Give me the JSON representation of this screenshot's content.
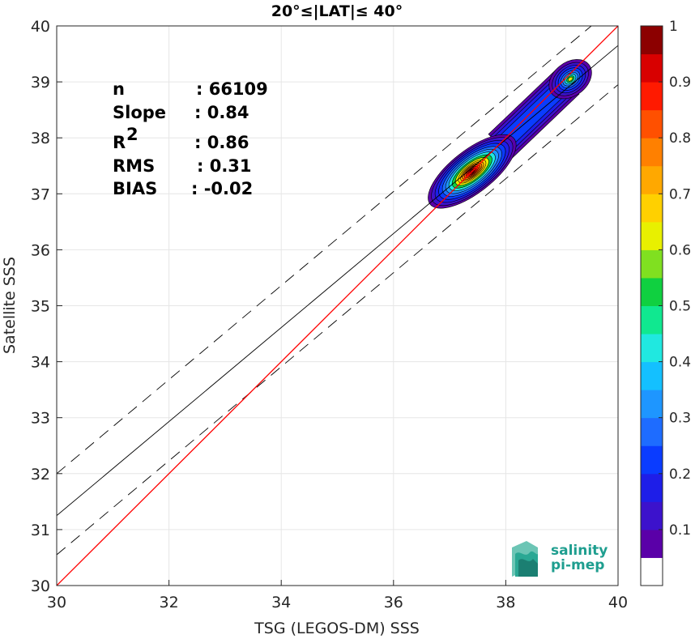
{
  "chart_data": {
    "type": "heatmap",
    "title": "20°≤|LAT|≤ 40°",
    "xlabel": "TSG (LEGOS-DM) SSS",
    "ylabel": "Satellite SSS",
    "xlim": [
      30,
      40
    ],
    "ylim": [
      30,
      40
    ],
    "x_ticks": [
      "30",
      "32",
      "34",
      "36",
      "38",
      "40"
    ],
    "y_ticks": [
      "30",
      "31",
      "32",
      "33",
      "34",
      "35",
      "36",
      "37",
      "38",
      "39",
      "40"
    ],
    "grid": true,
    "stats": [
      {
        "label": "n",
        "value": ": 66109"
      },
      {
        "label": "Slope",
        "value": ": 0.84"
      },
      {
        "label": "R",
        "value": ": 0.86",
        "superscript": "2"
      },
      {
        "label": "RMS",
        "value": ": 0.31"
      },
      {
        "label": "BIAS",
        "value": ": -0.02"
      }
    ],
    "lines": {
      "identity": {
        "x": [
          30,
          40
        ],
        "y": [
          30,
          40
        ],
        "color": "#ff0000"
      },
      "regression": {
        "x": [
          30,
          40
        ],
        "y": [
          31.25,
          39.65
        ],
        "color": "#000000"
      },
      "regression_upper": {
        "x": [
          30,
          40
        ],
        "y": [
          32.0,
          40.4
        ],
        "style": "dashed"
      },
      "regression_lower": {
        "x": [
          30,
          40
        ],
        "y": [
          30.55,
          38.95
        ],
        "style": "dashed"
      }
    },
    "density_peaks": [
      {
        "x": 37.4,
        "y": 37.4,
        "value": 1.0
      },
      {
        "x": 39.15,
        "y": 39.05,
        "value": 0.6
      }
    ],
    "colorbar": {
      "ticks": [
        "0.1",
        "0.2",
        "0.3",
        "0.4",
        "0.5",
        "0.6",
        "0.7",
        "0.8",
        "0.9",
        "1"
      ],
      "levels": 20,
      "colors": [
        "#ffffff",
        "#5a00a8",
        "#3c12cc",
        "#1e1ee8",
        "#0a3cff",
        "#1e6cff",
        "#1e96ff",
        "#14c0ff",
        "#20e8e0",
        "#10e890",
        "#10d040",
        "#80e020",
        "#e8f000",
        "#ffd000",
        "#ffa800",
        "#ff8000",
        "#ff5000",
        "#ff1a00",
        "#d80000",
        "#8c0000"
      ]
    },
    "logo": {
      "line1": "salinity",
      "line2": "pi-mep"
    }
  }
}
